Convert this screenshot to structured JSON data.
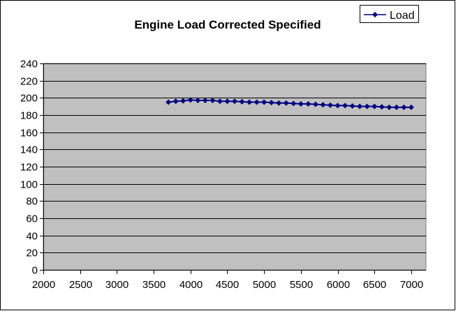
{
  "chart_data": {
    "type": "line",
    "title": "Engine Load Corrected Specified",
    "xlabel": "",
    "ylabel": "",
    "xlim": [
      2000,
      7200
    ],
    "ylim": [
      0,
      240
    ],
    "xticks": [
      2000,
      2500,
      3000,
      3500,
      4000,
      4500,
      5000,
      5500,
      6000,
      6500,
      7000
    ],
    "yticks": [
      0,
      20,
      40,
      60,
      80,
      100,
      120,
      140,
      160,
      180,
      200,
      220,
      240
    ],
    "grid": "horizontal",
    "legend_placement": "top-right",
    "colors": {
      "plot_bg": "#C0C0C0",
      "series": "#000080"
    },
    "series": [
      {
        "name": "Load",
        "marker": "diamond",
        "x": [
          3700,
          3800,
          3900,
          4000,
          4100,
          4200,
          4300,
          4400,
          4500,
          4600,
          4700,
          4800,
          4900,
          5000,
          5100,
          5200,
          5300,
          5400,
          5500,
          5600,
          5700,
          5800,
          5900,
          6000,
          6100,
          6200,
          6300,
          6400,
          6500,
          6600,
          6700,
          6800,
          6900,
          7000
        ],
        "y": [
          195,
          196,
          196.5,
          197.5,
          197,
          197,
          197,
          196,
          196,
          196,
          195.5,
          195,
          195,
          195,
          194.5,
          194,
          194,
          193.5,
          193,
          193,
          192.5,
          192,
          191.5,
          191,
          191,
          190.5,
          190,
          190,
          190,
          189.5,
          189,
          189,
          189,
          189
        ]
      }
    ]
  }
}
